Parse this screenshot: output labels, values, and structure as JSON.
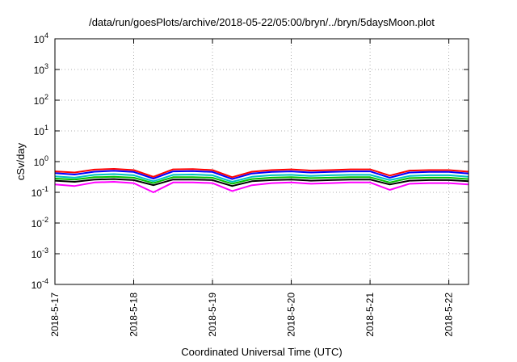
{
  "chart_data": {
    "type": "line",
    "title": "/data/run/goesPlots/archive/2018-05-22/05:00/bryn/../bryn/5daysMoon.plot",
    "xlabel": "Coordinated Universal Time (UTC)",
    "ylabel": "cSv/day",
    "yscale": "log",
    "ylim": [
      0.0001,
      10000
    ],
    "xlim": [
      "2018-05-17",
      "2018-05-22 06:00"
    ],
    "grid": true,
    "y_ticks": [
      {
        "base": "10",
        "exp": "-4",
        "value": 0.0001
      },
      {
        "base": "10",
        "exp": "-3",
        "value": 0.001
      },
      {
        "base": "10",
        "exp": "-2",
        "value": 0.01
      },
      {
        "base": "10",
        "exp": "-1",
        "value": 0.1
      },
      {
        "base": "10",
        "exp": "0",
        "value": 1
      },
      {
        "base": "10",
        "exp": "1",
        "value": 10
      },
      {
        "base": "10",
        "exp": "2",
        "value": 100
      },
      {
        "base": "10",
        "exp": "3",
        "value": 1000
      },
      {
        "base": "10",
        "exp": "4",
        "value": 10000
      }
    ],
    "x_ticks": [
      "2018-5-17",
      "2018-5-18",
      "2018-5-19",
      "2018-5-20",
      "2018-5-21",
      "2018-5-22"
    ],
    "series": [
      {
        "color": "#ff00ff",
        "x": [
          "2018-05-17 00:00",
          "2018-05-17 06:00",
          "2018-05-17 12:00",
          "2018-05-17 18:00",
          "2018-05-18 00:00",
          "2018-05-18 06:00",
          "2018-05-18 12:00",
          "2018-05-18 18:00",
          "2018-05-19 00:00",
          "2018-05-19 06:00",
          "2018-05-19 12:00",
          "2018-05-19 18:00",
          "2018-05-20 00:00",
          "2018-05-20 06:00",
          "2018-05-20 12:00",
          "2018-05-20 18:00",
          "2018-05-21 00:00",
          "2018-05-21 06:00",
          "2018-05-21 12:00",
          "2018-05-21 18:00",
          "2018-05-22 00:00",
          "2018-05-22 06:00"
        ],
        "values": [
          0.18,
          0.16,
          0.21,
          0.22,
          0.2,
          0.1,
          0.21,
          0.21,
          0.2,
          0.11,
          0.17,
          0.2,
          0.21,
          0.19,
          0.2,
          0.21,
          0.21,
          0.12,
          0.19,
          0.2,
          0.2,
          0.18
        ]
      },
      {
        "color": "#000000",
        "x": [
          "2018-05-17 00:00",
          "2018-05-17 06:00",
          "2018-05-17 12:00",
          "2018-05-17 18:00",
          "2018-05-18 00:00",
          "2018-05-18 06:00",
          "2018-05-18 12:00",
          "2018-05-18 18:00",
          "2018-05-19 00:00",
          "2018-05-19 06:00",
          "2018-05-19 12:00",
          "2018-05-19 18:00",
          "2018-05-20 00:00",
          "2018-05-20 06:00",
          "2018-05-20 12:00",
          "2018-05-20 18:00",
          "2018-05-21 00:00",
          "2018-05-21 06:00",
          "2018-05-21 12:00",
          "2018-05-21 18:00",
          "2018-05-22 00:00",
          "2018-05-22 06:00"
        ],
        "values": [
          0.24,
          0.22,
          0.26,
          0.27,
          0.25,
          0.17,
          0.26,
          0.26,
          0.25,
          0.16,
          0.23,
          0.25,
          0.26,
          0.24,
          0.25,
          0.26,
          0.26,
          0.18,
          0.24,
          0.25,
          0.25,
          0.23
        ]
      },
      {
        "color": "#00c000",
        "x": [
          "2018-05-17 00:00",
          "2018-05-17 06:00",
          "2018-05-17 12:00",
          "2018-05-17 18:00",
          "2018-05-18 00:00",
          "2018-05-18 06:00",
          "2018-05-18 12:00",
          "2018-05-18 18:00",
          "2018-05-19 00:00",
          "2018-05-19 06:00",
          "2018-05-19 12:00",
          "2018-05-19 18:00",
          "2018-05-20 00:00",
          "2018-05-20 06:00",
          "2018-05-20 12:00",
          "2018-05-20 18:00",
          "2018-05-21 00:00",
          "2018-05-21 06:00",
          "2018-05-21 12:00",
          "2018-05-21 18:00",
          "2018-05-22 00:00",
          "2018-05-22 06:00"
        ],
        "values": [
          0.28,
          0.26,
          0.31,
          0.32,
          0.3,
          0.2,
          0.31,
          0.31,
          0.3,
          0.19,
          0.27,
          0.3,
          0.31,
          0.29,
          0.3,
          0.31,
          0.31,
          0.21,
          0.29,
          0.3,
          0.3,
          0.27
        ]
      },
      {
        "color": "#00c0c0",
        "x": [
          "2018-05-17 00:00",
          "2018-05-17 06:00",
          "2018-05-17 12:00",
          "2018-05-17 18:00",
          "2018-05-18 00:00",
          "2018-05-18 06:00",
          "2018-05-18 12:00",
          "2018-05-18 18:00",
          "2018-05-19 00:00",
          "2018-05-19 06:00",
          "2018-05-19 12:00",
          "2018-05-19 18:00",
          "2018-05-20 00:00",
          "2018-05-20 06:00",
          "2018-05-20 12:00",
          "2018-05-20 18:00",
          "2018-05-21 00:00",
          "2018-05-21 06:00",
          "2018-05-21 12:00",
          "2018-05-21 18:00",
          "2018-05-22 00:00",
          "2018-05-22 06:00"
        ],
        "values": [
          0.33,
          0.3,
          0.37,
          0.39,
          0.36,
          0.23,
          0.37,
          0.38,
          0.36,
          0.22,
          0.32,
          0.36,
          0.37,
          0.34,
          0.36,
          0.37,
          0.37,
          0.25,
          0.34,
          0.36,
          0.36,
          0.32
        ]
      },
      {
        "color": "#0000ff",
        "x": [
          "2018-05-17 00:00",
          "2018-05-17 06:00",
          "2018-05-17 12:00",
          "2018-05-17 18:00",
          "2018-05-18 00:00",
          "2018-05-18 06:00",
          "2018-05-18 12:00",
          "2018-05-18 18:00",
          "2018-05-19 00:00",
          "2018-05-19 06:00",
          "2018-05-19 12:00",
          "2018-05-19 18:00",
          "2018-05-20 00:00",
          "2018-05-20 06:00",
          "2018-05-20 12:00",
          "2018-05-20 18:00",
          "2018-05-21 00:00",
          "2018-05-21 06:00",
          "2018-05-21 12:00",
          "2018-05-21 18:00",
          "2018-05-22 00:00",
          "2018-05-22 06:00"
        ],
        "values": [
          0.42,
          0.38,
          0.47,
          0.5,
          0.46,
          0.28,
          0.48,
          0.49,
          0.46,
          0.27,
          0.41,
          0.46,
          0.48,
          0.44,
          0.46,
          0.48,
          0.48,
          0.3,
          0.44,
          0.46,
          0.46,
          0.41
        ]
      },
      {
        "color": "#ff0000",
        "x": [
          "2018-05-17 00:00",
          "2018-05-17 06:00",
          "2018-05-17 12:00",
          "2018-05-17 18:00",
          "2018-05-18 00:00",
          "2018-05-18 06:00",
          "2018-05-18 12:00",
          "2018-05-18 18:00",
          "2018-05-19 00:00",
          "2018-05-19 06:00",
          "2018-05-19 12:00",
          "2018-05-19 18:00",
          "2018-05-20 00:00",
          "2018-05-20 06:00",
          "2018-05-20 12:00",
          "2018-05-20 18:00",
          "2018-05-21 00:00",
          "2018-05-21 06:00",
          "2018-05-21 12:00",
          "2018-05-21 18:00",
          "2018-05-22 00:00",
          "2018-05-22 06:00"
        ],
        "values": [
          0.48,
          0.44,
          0.55,
          0.58,
          0.53,
          0.32,
          0.56,
          0.57,
          0.53,
          0.31,
          0.47,
          0.53,
          0.56,
          0.51,
          0.53,
          0.56,
          0.56,
          0.35,
          0.51,
          0.53,
          0.53,
          0.47
        ]
      }
    ]
  }
}
